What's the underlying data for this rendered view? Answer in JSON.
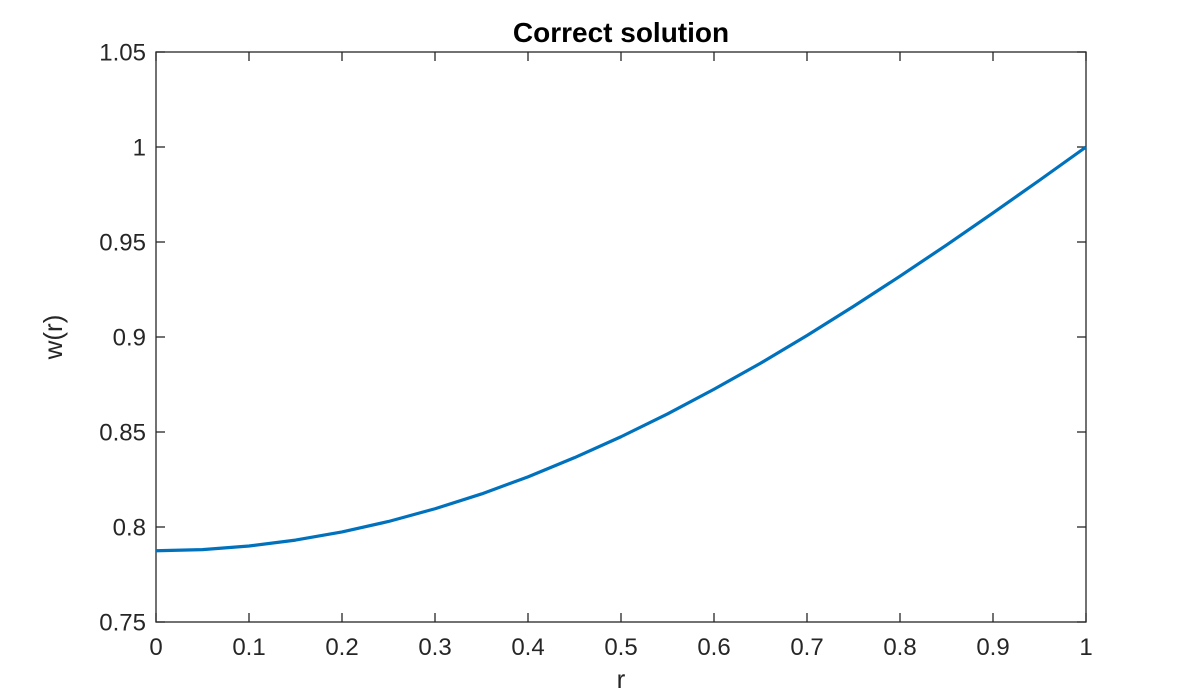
{
  "figure": {
    "title": "Correct solution"
  },
  "colors": {
    "line": "#0072BD",
    "axis": "#262626",
    "tick_label": "#262626",
    "title": "#000000",
    "background": "#FFFFFF"
  },
  "chart_data": {
    "type": "line",
    "title": "Correct solution",
    "xlabel": "r",
    "ylabel": "w(r)",
    "xlim": [
      0,
      1
    ],
    "ylim": [
      0.75,
      1.05
    ],
    "grid": false,
    "box": true,
    "tick_direction": "in",
    "legend": "none",
    "x_ticks": [
      0,
      0.1,
      0.2,
      0.3,
      0.4,
      0.5,
      0.6,
      0.7,
      0.8,
      0.9,
      1
    ],
    "x_tick_labels": [
      "0",
      "0.1",
      "0.2",
      "0.3",
      "0.4",
      "0.5",
      "0.6",
      "0.7",
      "0.8",
      "0.9",
      "1"
    ],
    "y_ticks": [
      0.75,
      0.8,
      0.85,
      0.9,
      0.95,
      1,
      1.05
    ],
    "y_tick_labels": [
      "0.75",
      "0.8",
      "0.85",
      "0.9",
      "0.95",
      "1",
      "1.05"
    ],
    "series": [
      {
        "name": "w(r)",
        "color": "#0072BD",
        "line_width": 3.2,
        "x": [
          0,
          0.05,
          0.1,
          0.15,
          0.2,
          0.25,
          0.3,
          0.35,
          0.4,
          0.45,
          0.5,
          0.55,
          0.6,
          0.65,
          0.7,
          0.75,
          0.8,
          0.85,
          0.9,
          0.95,
          1
        ],
        "y": [
          0.7875,
          0.7881,
          0.79,
          0.7931,
          0.7974,
          0.8029,
          0.8096,
          0.8174,
          0.8264,
          0.8365,
          0.8475,
          0.8595,
          0.8725,
          0.8862,
          0.9008,
          0.9161,
          0.932,
          0.9484,
          0.9653,
          0.9825,
          1.0
        ]
      }
    ]
  }
}
